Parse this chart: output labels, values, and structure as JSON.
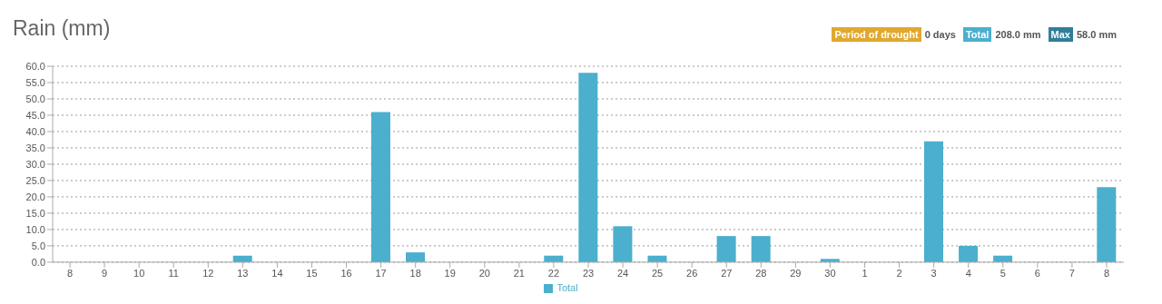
{
  "chart_data": {
    "type": "bar",
    "title": "Rain (mm)",
    "annotations": [
      "Period of drought",
      "0 days",
      "Total",
      "208.0 mm",
      "Max",
      "58.0 mm"
    ],
    "categories": [
      "8",
      "9",
      "10",
      "11",
      "12",
      "13",
      "14",
      "15",
      "16",
      "17",
      "18",
      "19",
      "20",
      "21",
      "22",
      "23",
      "24",
      "25",
      "26",
      "27",
      "28",
      "29",
      "30",
      "1",
      "2",
      "3",
      "4",
      "5",
      "6",
      "7",
      "8"
    ],
    "series": [
      {
        "name": "Total",
        "color": "#4bafcd",
        "values": [
          0,
          0,
          0,
          0,
          0,
          2,
          0,
          0,
          0,
          46,
          3,
          0,
          0,
          0,
          2,
          58,
          11,
          2,
          0,
          8,
          8,
          0,
          1,
          0,
          0,
          37,
          5,
          2,
          0,
          0,
          23
        ]
      }
    ],
    "ylim": [
      0,
      60
    ],
    "yticks": [
      {
        "value": 0,
        "label": "0.0"
      },
      {
        "value": 5,
        "label": "5.0"
      },
      {
        "value": 10,
        "label": "10.0"
      },
      {
        "value": 15,
        "label": "15.0"
      },
      {
        "value": 20,
        "label": "20.0"
      },
      {
        "value": 25,
        "label": "25.0"
      },
      {
        "value": 30,
        "label": "30.0"
      },
      {
        "value": 35,
        "label": "35.0"
      },
      {
        "value": 40,
        "label": "40.0"
      },
      {
        "value": 45,
        "label": "45.0"
      },
      {
        "value": 50,
        "label": "50.0"
      },
      {
        "value": 55,
        "label": "55.0"
      },
      {
        "value": 60,
        "label": "60.0"
      }
    ],
    "grid": "y",
    "legend": "bottom"
  }
}
